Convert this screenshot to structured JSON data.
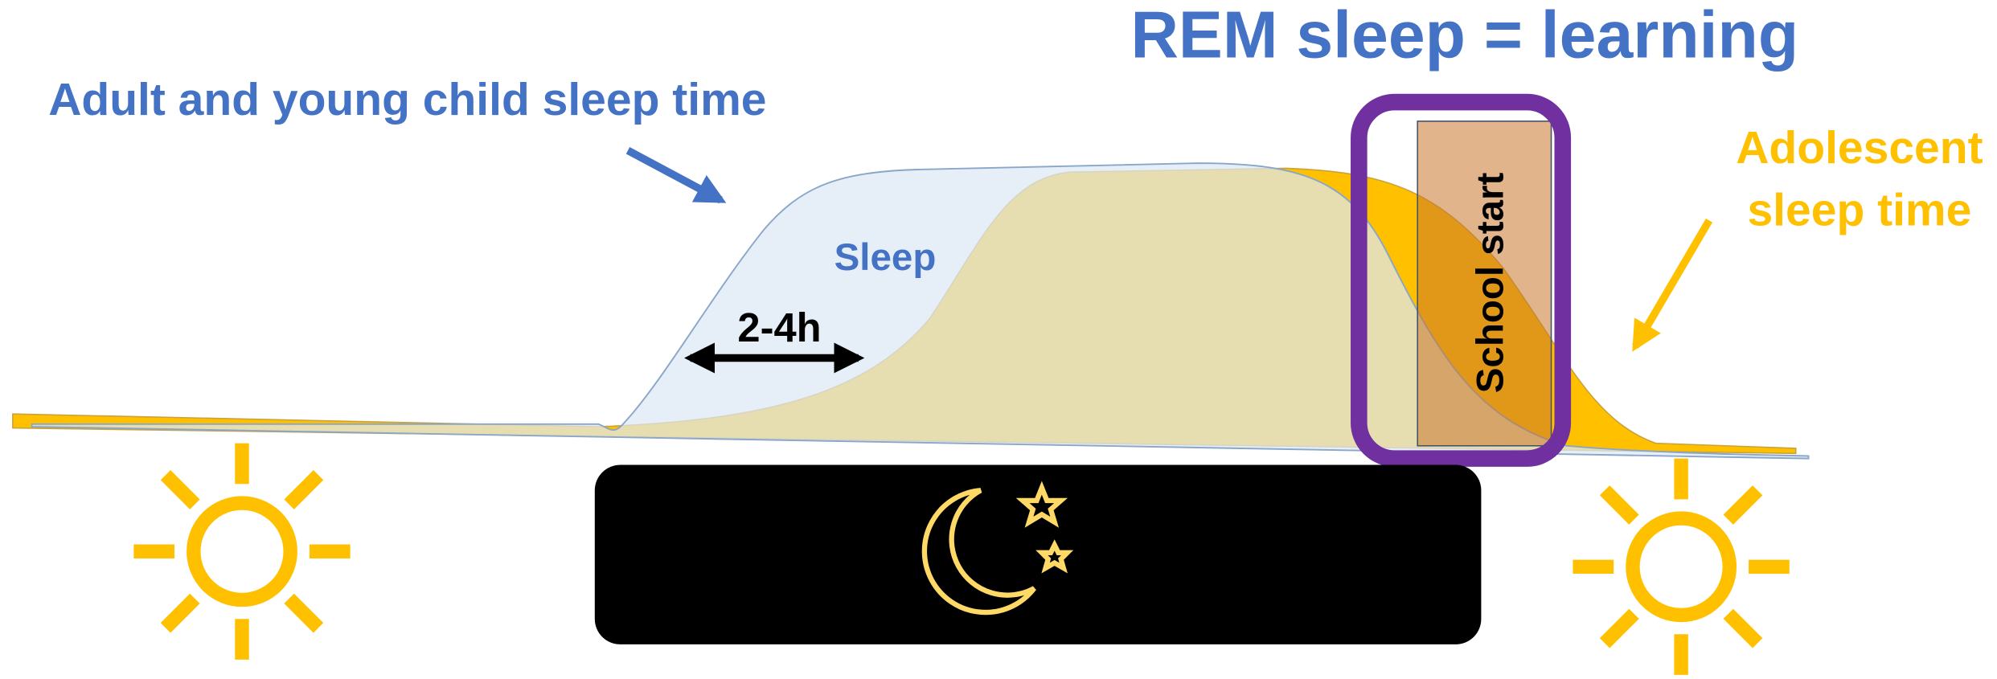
{
  "title": "REM sleep = learning",
  "adult_label": "Adult and young child sleep time",
  "sleep_label": "Sleep",
  "gap_label": "2-4h",
  "school_label": "School start",
  "adolescent_label": [
    "Adolescent",
    "sleep time"
  ]
}
